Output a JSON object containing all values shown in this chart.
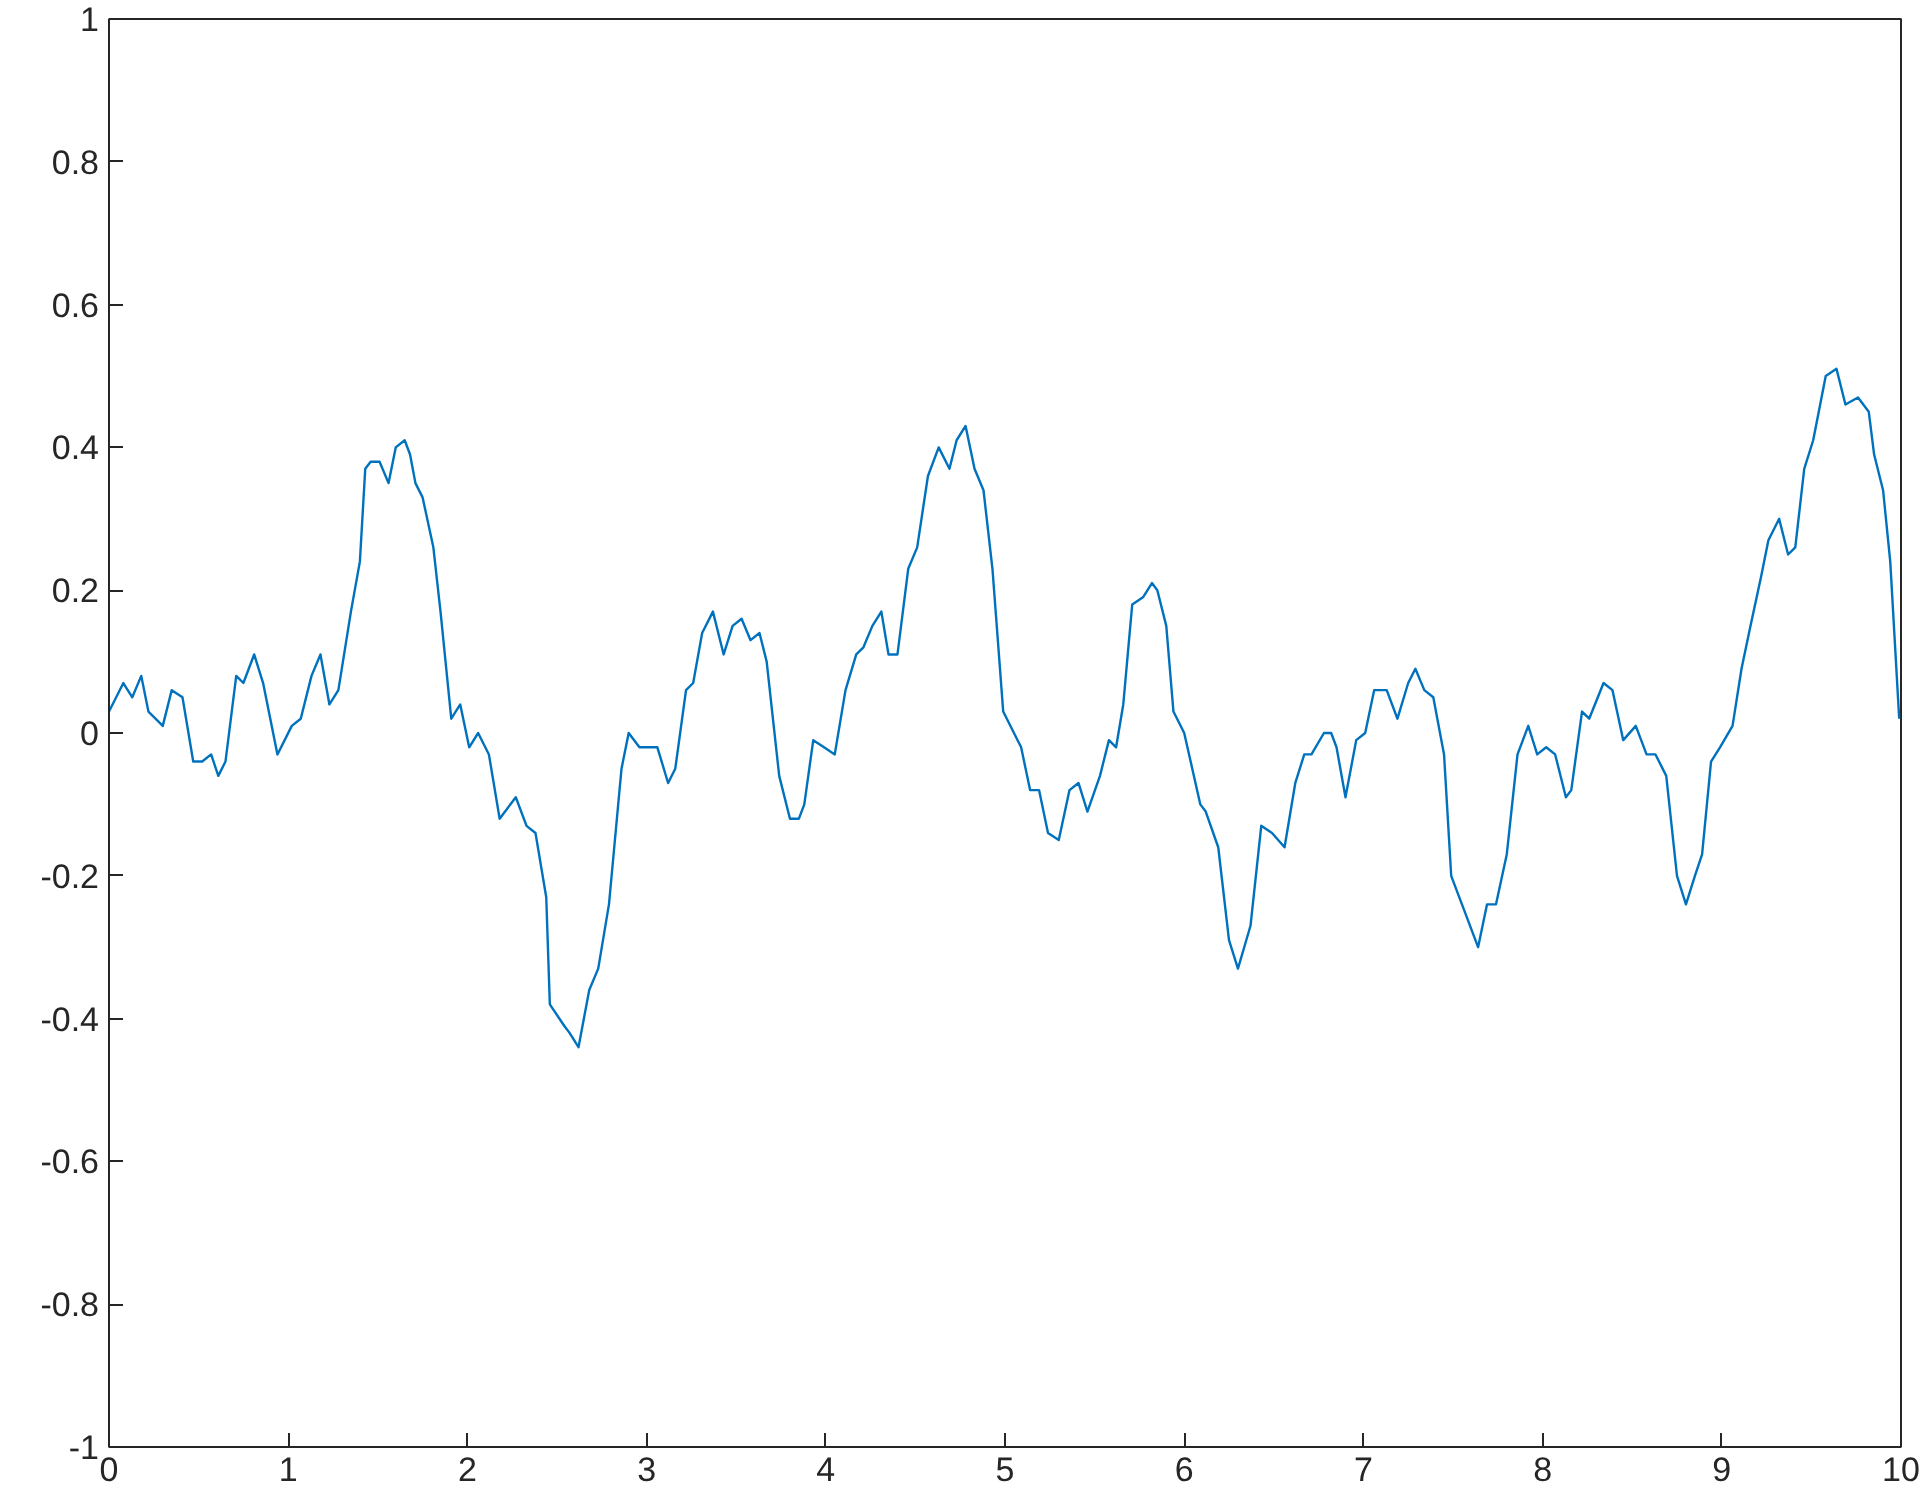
{
  "chart_data": {
    "type": "line",
    "xlim": [
      0,
      10
    ],
    "ylim": [
      -1,
      1
    ],
    "xticks": [
      0,
      1,
      2,
      3,
      4,
      5,
      6,
      7,
      8,
      9,
      10
    ],
    "yticks": [
      -1,
      -0.8,
      -0.6,
      -0.4,
      -0.2,
      0,
      0.2,
      0.4,
      0.6,
      0.8,
      1
    ],
    "grid": false,
    "marker": "none",
    "line_style": "solid",
    "series": [
      {
        "color": "#0072bd",
        "x": [
          0.0,
          0.08,
          0.13,
          0.18,
          0.22,
          0.3,
          0.35,
          0.41,
          0.47,
          0.52,
          0.57,
          0.61,
          0.65,
          0.71,
          0.75,
          0.81,
          0.86,
          0.94,
          1.02,
          1.07,
          1.13,
          1.18,
          1.23,
          1.28,
          1.35,
          1.4,
          1.43,
          1.46,
          1.51,
          1.56,
          1.6,
          1.65,
          1.68,
          1.71,
          1.75,
          1.81,
          1.85,
          1.91,
          1.96,
          2.01,
          2.06,
          2.12,
          2.18,
          2.27,
          2.33,
          2.38,
          2.44,
          2.46,
          2.54,
          2.57,
          2.62,
          2.68,
          2.73,
          2.79,
          2.86,
          2.9,
          2.96,
          3.01,
          3.06,
          3.12,
          3.16,
          3.22,
          3.26,
          3.31,
          3.37,
          3.43,
          3.48,
          3.53,
          3.58,
          3.63,
          3.67,
          3.74,
          3.8,
          3.85,
          3.88,
          3.93,
          3.99,
          4.05,
          4.11,
          4.17,
          4.21,
          4.26,
          4.31,
          4.35,
          4.4,
          4.46,
          4.51,
          4.57,
          4.63,
          4.69,
          4.73,
          4.78,
          4.83,
          4.88,
          4.93,
          4.99,
          5.05,
          5.09,
          5.14,
          5.19,
          5.24,
          5.3,
          5.36,
          5.41,
          5.46,
          5.53,
          5.58,
          5.62,
          5.66,
          5.71,
          5.77,
          5.82,
          5.85,
          5.9,
          5.94,
          6.0,
          6.09,
          6.12,
          6.19,
          6.25,
          6.3,
          6.37,
          6.43,
          6.49,
          6.56,
          6.62,
          6.67,
          6.71,
          6.78,
          6.82,
          6.85,
          6.9,
          6.96,
          7.01,
          7.06,
          7.13,
          7.19,
          7.25,
          7.29,
          7.34,
          7.39,
          7.45,
          7.49,
          7.55,
          7.64,
          7.69,
          7.74,
          7.8,
          7.86,
          7.92,
          7.97,
          8.02,
          8.07,
          8.13,
          8.16,
          8.22,
          8.26,
          8.34,
          8.39,
          8.45,
          8.52,
          8.58,
          8.63,
          8.69,
          8.75,
          8.8,
          8.85,
          8.89,
          8.94,
          8.99,
          9.06,
          9.11,
          9.16,
          9.22,
          9.26,
          9.32,
          9.37,
          9.41,
          9.46,
          9.51,
          9.58,
          9.64,
          9.69,
          9.76,
          9.82,
          9.85,
          9.9,
          9.94,
          9.99
        ],
        "values": [
          0.03,
          0.07,
          0.05,
          0.08,
          0.03,
          0.01,
          0.06,
          0.05,
          -0.04,
          -0.04,
          -0.03,
          -0.06,
          -0.04,
          0.08,
          0.07,
          0.11,
          0.07,
          -0.03,
          0.01,
          0.02,
          0.08,
          0.11,
          0.04,
          0.06,
          0.17,
          0.24,
          0.37,
          0.38,
          0.38,
          0.35,
          0.4,
          0.41,
          0.39,
          0.35,
          0.33,
          0.26,
          0.17,
          0.02,
          0.04,
          -0.02,
          0.0,
          -0.03,
          -0.12,
          -0.09,
          -0.13,
          -0.14,
          -0.23,
          -0.38,
          -0.41,
          -0.42,
          -0.44,
          -0.36,
          -0.33,
          -0.24,
          -0.05,
          0.0,
          -0.02,
          -0.02,
          -0.02,
          -0.07,
          -0.05,
          0.06,
          0.07,
          0.14,
          0.17,
          0.11,
          0.15,
          0.16,
          0.13,
          0.14,
          0.1,
          -0.06,
          -0.12,
          -0.12,
          -0.1,
          -0.01,
          -0.02,
          -0.03,
          0.06,
          0.11,
          0.12,
          0.15,
          0.17,
          0.11,
          0.11,
          0.23,
          0.26,
          0.36,
          0.4,
          0.37,
          0.41,
          0.43,
          0.37,
          0.34,
          0.23,
          0.03,
          0.0,
          -0.02,
          -0.08,
          -0.08,
          -0.14,
          -0.15,
          -0.08,
          -0.07,
          -0.11,
          -0.06,
          -0.01,
          -0.02,
          0.04,
          0.18,
          0.19,
          0.21,
          0.2,
          0.15,
          0.03,
          0.0,
          -0.1,
          -0.11,
          -0.16,
          -0.29,
          -0.33,
          -0.27,
          -0.13,
          -0.14,
          -0.16,
          -0.07,
          -0.03,
          -0.03,
          0.0,
          0.0,
          -0.02,
          -0.09,
          -0.01,
          0.0,
          0.06,
          0.06,
          0.02,
          0.07,
          0.09,
          0.06,
          0.05,
          -0.03,
          -0.2,
          -0.24,
          -0.3,
          -0.24,
          -0.24,
          -0.17,
          -0.03,
          0.01,
          -0.03,
          -0.02,
          -0.03,
          -0.09,
          -0.08,
          0.03,
          0.02,
          0.07,
          0.06,
          -0.01,
          0.01,
          -0.03,
          -0.03,
          -0.06,
          -0.2,
          -0.24,
          -0.2,
          -0.17,
          -0.04,
          -0.02,
          0.01,
          0.09,
          0.15,
          0.22,
          0.27,
          0.3,
          0.25,
          0.26,
          0.37,
          0.41,
          0.5,
          0.51,
          0.46,
          0.47,
          0.45,
          0.39,
          0.34,
          0.24,
          0.02
        ]
      }
    ]
  }
}
